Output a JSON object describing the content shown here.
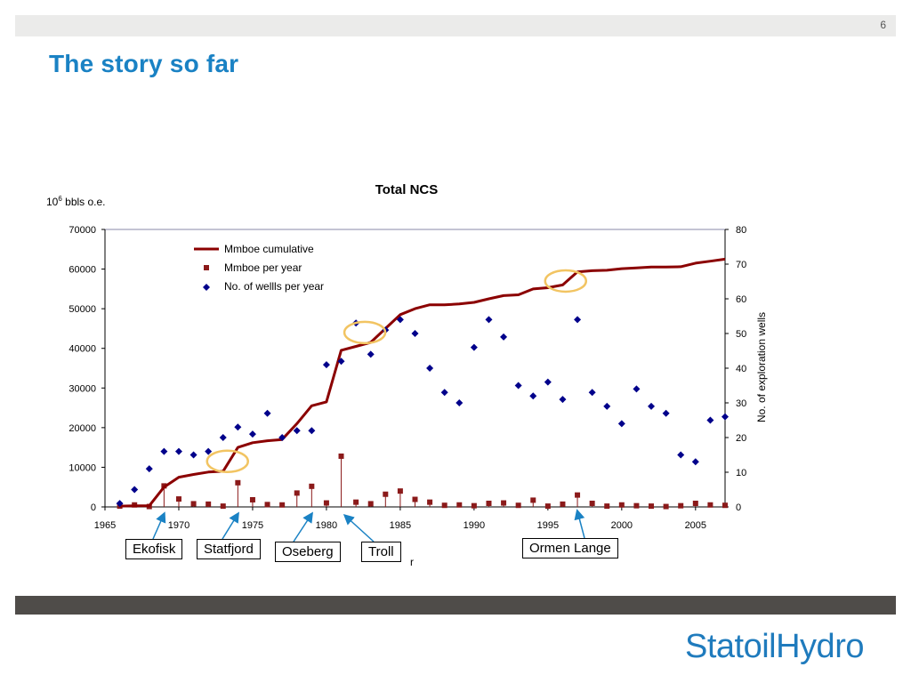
{
  "slide": {
    "number": "6",
    "title": "The story so far",
    "logo": "StatoilHydro",
    "colors": {
      "title": "#1a82c4",
      "topbar": "#ebebea",
      "bottombar": "#4f4c49",
      "logo": "#1f7bbd"
    }
  },
  "chart_data": {
    "type": "line",
    "title": "Total NCS",
    "ylabel_left_base": "10",
    "ylabel_left_exp": "6",
    "ylabel_left_rest": " bbls o.e.",
    "ylabel_right": "No. of exploration wells",
    "xlabel_partial": "r",
    "xlim": [
      1965,
      2007
    ],
    "xticks": [
      "1965",
      "1970",
      "1975",
      "1980",
      "1985",
      "1990",
      "1995",
      "2000",
      "2005"
    ],
    "ylim_left": [
      0,
      70000
    ],
    "yticks_left": [
      "0",
      "10000",
      "20000",
      "30000",
      "40000",
      "50000",
      "60000",
      "70000"
    ],
    "ylim_right": [
      0,
      80
    ],
    "yticks_right": [
      "0",
      "10",
      "20",
      "30",
      "40",
      "50",
      "60",
      "70",
      "80"
    ],
    "legend_position": "top-left",
    "series": [
      {
        "name": "Mmboe cumulative",
        "style": "line",
        "axis": "left",
        "color": "#8b0000",
        "x": [
          1966,
          1967,
          1968,
          1969,
          1970,
          1971,
          1972,
          1973,
          1974,
          1975,
          1976,
          1977,
          1978,
          1979,
          1980,
          1981,
          1982,
          1983,
          1984,
          1985,
          1986,
          1987,
          1988,
          1989,
          1990,
          1991,
          1992,
          1993,
          1994,
          1995,
          1996,
          1997,
          1998,
          1999,
          2000,
          2001,
          2002,
          2003,
          2004,
          2005,
          2006,
          2007
        ],
        "values": [
          200,
          300,
          300,
          5000,
          7500,
          8200,
          8800,
          9000,
          15000,
          16200,
          16700,
          17000,
          21000,
          25500,
          26500,
          39500,
          40500,
          41500,
          45000,
          48500,
          50000,
          51000,
          51000,
          51200,
          51600,
          52500,
          53300,
          53500,
          55000,
          55300,
          56000,
          59300,
          59600,
          59700,
          60100,
          60300,
          60500,
          60500,
          60600,
          61500,
          62000,
          62500
        ]
      },
      {
        "name": "Mmboe per year",
        "style": "square-marker",
        "axis": "left",
        "color": "#8b1a1a",
        "x": [
          1966,
          1967,
          1968,
          1969,
          1970,
          1971,
          1972,
          1973,
          1974,
          1975,
          1976,
          1977,
          1978,
          1979,
          1980,
          1981,
          1982,
          1983,
          1984,
          1985,
          1986,
          1987,
          1988,
          1989,
          1990,
          1991,
          1992,
          1993,
          1994,
          1995,
          1996,
          1997,
          1998,
          1999,
          2000,
          2001,
          2002,
          2003,
          2004,
          2005,
          2006,
          2007
        ],
        "values": [
          200,
          500,
          100,
          5300,
          2000,
          800,
          700,
          200,
          6100,
          1800,
          600,
          500,
          3500,
          5200,
          1000,
          12800,
          1200,
          800,
          3200,
          4000,
          1900,
          1200,
          400,
          500,
          300,
          900,
          1000,
          400,
          1700,
          200,
          700,
          3000,
          900,
          200,
          500,
          300,
          200,
          100,
          300,
          900,
          500,
          400
        ]
      },
      {
        "name": "No. of wellls per year",
        "style": "diamond-marker",
        "axis": "right",
        "color": "#00008b",
        "x": [
          1966,
          1967,
          1968,
          1969,
          1970,
          1971,
          1972,
          1973,
          1974,
          1975,
          1976,
          1977,
          1978,
          1979,
          1980,
          1981,
          1982,
          1983,
          1984,
          1985,
          1986,
          1987,
          1988,
          1989,
          1990,
          1991,
          1992,
          1993,
          1994,
          1995,
          1996,
          1997,
          1998,
          1999,
          2000,
          2001,
          2002,
          2003,
          2004,
          2005,
          2006,
          2007
        ],
        "values": [
          1,
          5,
          11,
          16,
          16,
          15,
          16,
          20,
          23,
          21,
          27,
          20,
          22,
          22,
          41,
          42,
          53,
          44,
          51,
          54,
          50,
          40,
          33,
          30,
          46,
          54,
          49,
          35,
          32,
          36,
          31,
          54,
          33,
          29,
          24,
          34,
          29,
          27,
          15,
          13,
          25,
          26
        ]
      }
    ],
    "annotations": [
      {
        "label": "Ekofisk",
        "year": 1969
      },
      {
        "label": "Statfjord",
        "year": 1974
      },
      {
        "label": "Oseberg",
        "year": 1979
      },
      {
        "label": "Troll",
        "year": 1982
      },
      {
        "label": "Ormen Lange",
        "year": 1997
      }
    ],
    "highlights": [
      {
        "year": 1973.3,
        "value": 11500
      },
      {
        "year": 1982.6,
        "value": 44000
      },
      {
        "year": 1996.2,
        "value": 57000
      }
    ]
  }
}
